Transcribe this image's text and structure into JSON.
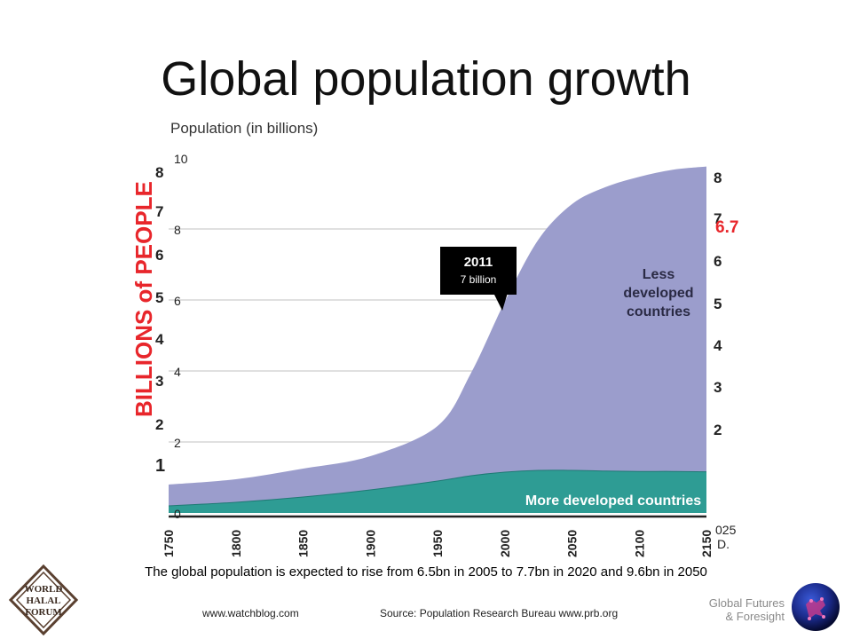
{
  "slide": {
    "title": "Global population growth",
    "caption": "The global population is expected to rise from 6.5bn in 2005 to 7.7bn in 2020 and 9.6bn in 2050",
    "credit_left": "www.watchblog.com",
    "credit_source": "Source: Population Research Bureau www.prb.org",
    "brand_line1": "Global Futures",
    "brand_line2": "& Foresight",
    "logo_text": [
      "WORLD",
      "HALAL",
      "FORUM"
    ]
  },
  "callout": {
    "year": "2011",
    "value": "7 billion",
    "x": 2011,
    "y": 7
  },
  "colors": {
    "less_developed": "#9b9dcc",
    "more_developed": "#2e9c94",
    "accent_red": "#e8262b",
    "callout_bg": "#000000"
  },
  "chart_data": {
    "type": "area",
    "title": "Population (in billions)",
    "xlabel": "",
    "ylabel": "BILLIONS of PEOPLE",
    "xlim": [
      1750,
      2150
    ],
    "ylim": [
      0,
      10
    ],
    "x_ticks": [
      "1750",
      "1800",
      "1850",
      "1900",
      "1950",
      "2000",
      "2050",
      "2100",
      "2150"
    ],
    "y_ticks_inner": [
      "0",
      "2",
      "4",
      "6",
      "8",
      "10"
    ],
    "y_ticks_outer": [
      "1",
      "2",
      "3",
      "4",
      "5",
      "6",
      "7",
      "8"
    ],
    "right_ticks": [
      "2",
      "3",
      "4",
      "5",
      "6",
      "7",
      "8"
    ],
    "right_label": "6.7",
    "right_corner_text": [
      "025",
      "D."
    ],
    "x": [
      1750,
      1800,
      1850,
      1900,
      1950,
      1975,
      2000,
      2025,
      2050,
      2075,
      2100,
      2125,
      2150
    ],
    "series": [
      {
        "name": "More developed countries",
        "values": [
          0.2,
          0.3,
          0.45,
          0.65,
          0.9,
          1.05,
          1.15,
          1.2,
          1.2,
          1.18,
          1.17,
          1.17,
          1.16
        ]
      },
      {
        "name": "Less developed countries",
        "values": [
          0.6,
          0.65,
          0.8,
          0.95,
          1.55,
          2.9,
          4.8,
          6.5,
          7.5,
          8.0,
          8.3,
          8.5,
          8.6
        ]
      }
    ],
    "series_labels": [
      "Less developed countries",
      "More developed countries"
    ]
  }
}
